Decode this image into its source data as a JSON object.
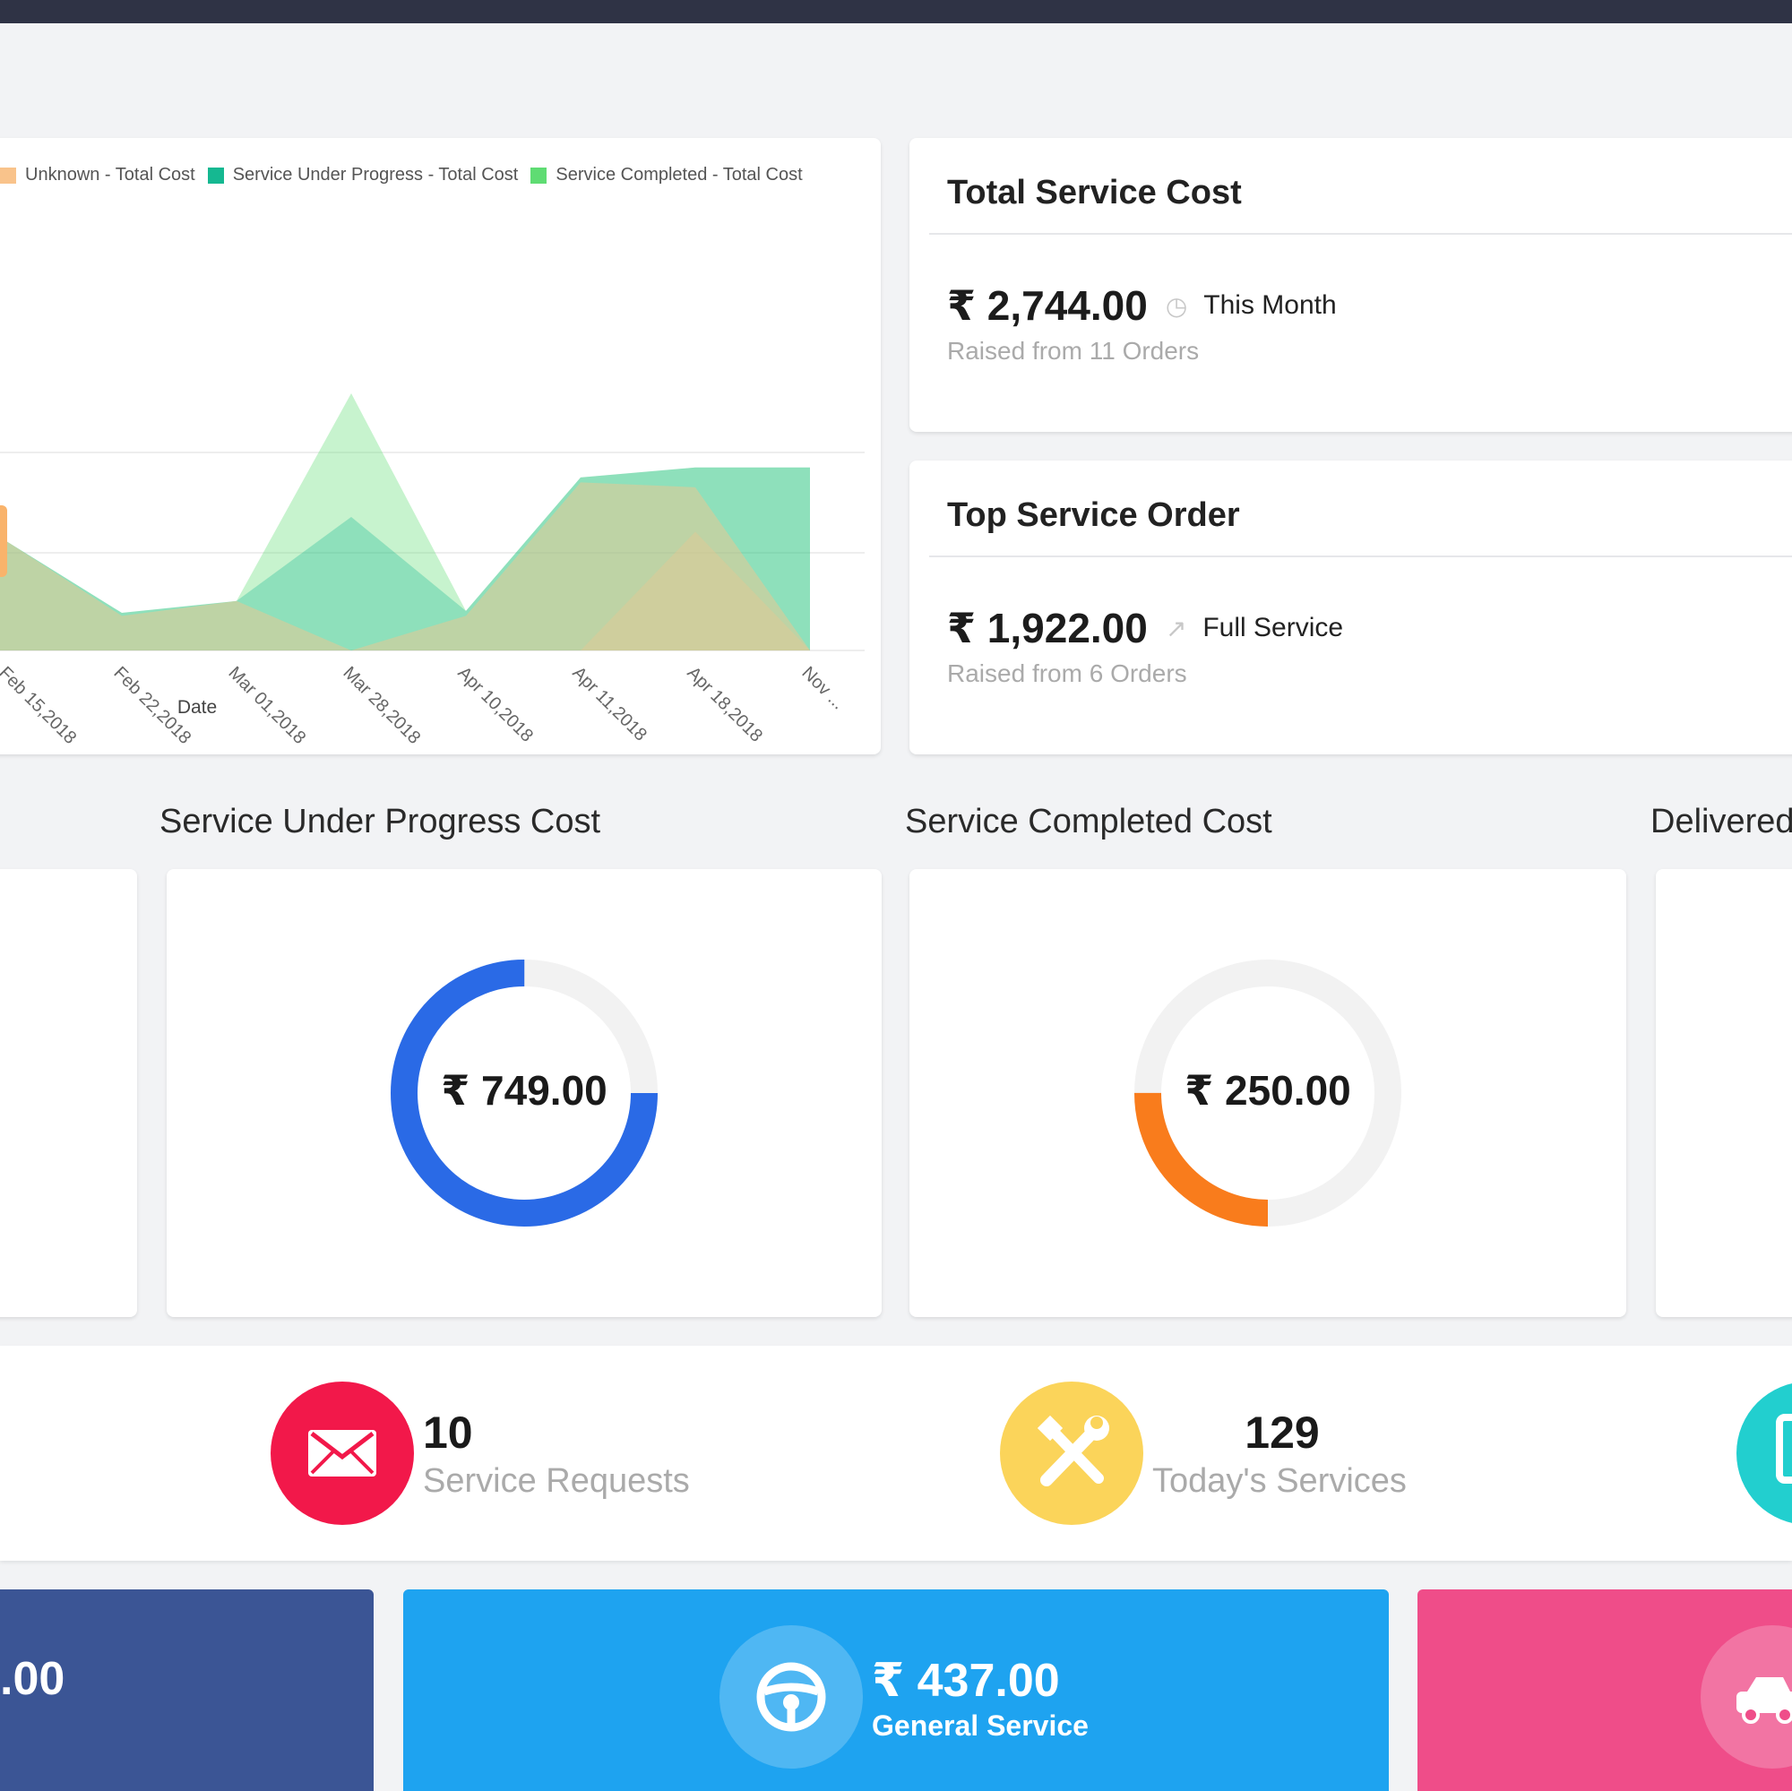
{
  "chart_data": {
    "type": "area",
    "title": "",
    "xlabel": "Date",
    "ylabel": "",
    "categories": [
      "",
      "Feb 15,2018",
      "Feb 22,2018",
      "Mar 01,2018",
      "Mar 28,2018",
      "Apr 10,2018",
      "Apr 11,2018",
      "Apr 18,2018",
      "Nov ..."
    ],
    "ylim": [
      0,
      260
    ],
    "grid": true,
    "legend": "top-left",
    "series": [
      {
        "name": "Unknown - Total Cost",
        "color": "#f9c38b",
        "values": [
          0,
          110,
          35,
          50,
          0,
          35,
          170,
          165,
          0
        ]
      },
      {
        "name": "Service Under Progress - Total Cost",
        "color": "#15b891",
        "values": [
          0,
          110,
          38,
          50,
          135,
          40,
          175,
          185,
          185
        ]
      },
      {
        "name": "Service Completed - Total Cost",
        "color": "#5fdc73",
        "values": [
          0,
          110,
          38,
          50,
          260,
          40,
          175,
          185,
          185
        ]
      }
    ],
    "overlay_values": [
      0,
      0,
      0,
      0,
      0,
      0,
      0,
      120,
      0
    ]
  },
  "total_service_cost": {
    "title": "Total Service Cost",
    "amount": "₹ 2,744.00",
    "period": "This Month",
    "sub": "Raised from 11 Orders"
  },
  "top_service_order": {
    "title": "Top Service Order",
    "amount": "₹ 1,922.00",
    "period": "Full Service",
    "sub": "Raised from 6 Orders"
  },
  "sections": {
    "under_progress": "Service Under Progress Cost",
    "completed": "Service Completed Cost",
    "delivered": "Delivered"
  },
  "donuts": {
    "under_progress": {
      "value": "₹ 749.00",
      "fraction": 0.75,
      "color": "#2a6ae6"
    },
    "completed": {
      "value": "₹ 250.00",
      "fraction": 0.25,
      "color": "#f97c1c"
    }
  },
  "stats": {
    "requests": {
      "value": "10",
      "label": "Service Requests",
      "icon": "mail-icon",
      "color": "#f2184a"
    },
    "today": {
      "value": "129",
      "label": "Today's Services",
      "icon": "tools-icon",
      "color": "#fbd45a"
    },
    "third": {
      "icon": "tablet-icon",
      "color": "#22cfcf"
    }
  },
  "tiles": {
    "first": {
      "value": ".00",
      "color": "#3b5595"
    },
    "general": {
      "value": "₹ 437.00",
      "label": "General Service",
      "icon": "steering-wheel-icon",
      "color": "#1ea3f0"
    },
    "third": {
      "icon": "car-icon",
      "color": "#ef4d89"
    }
  }
}
